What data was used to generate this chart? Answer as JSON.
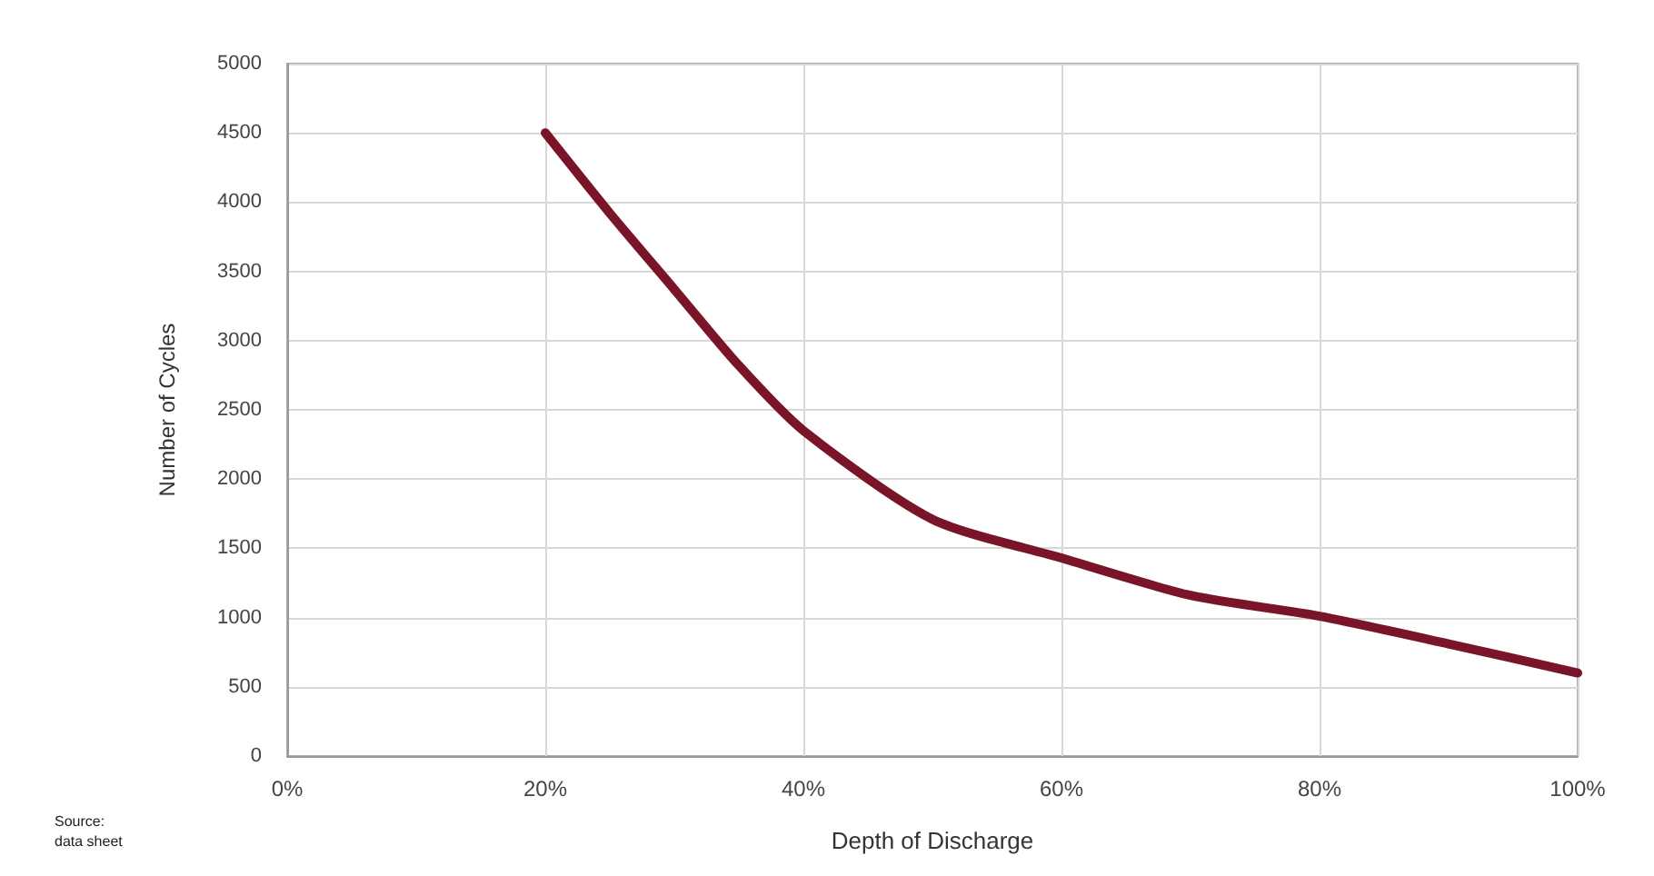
{
  "chart_data": {
    "type": "line",
    "xlabel": "Depth of Discharge",
    "ylabel": "Number of Cycles",
    "x": [
      20,
      25,
      30,
      35,
      40,
      50,
      60,
      70,
      80,
      90,
      100
    ],
    "series": [
      {
        "color": "#7a1428",
        "values": [
          4500,
          3920,
          3370,
          2820,
          2350,
          1710,
          1430,
          1160,
          1010,
          810,
          600
        ]
      }
    ],
    "xlim": [
      0,
      100
    ],
    "xticks": [
      {
        "value": 0,
        "label": "0%"
      },
      {
        "value": 20,
        "label": "20%"
      },
      {
        "value": 40,
        "label": "40%"
      },
      {
        "value": 60,
        "label": "60%"
      },
      {
        "value": 80,
        "label": "80%"
      },
      {
        "value": 100,
        "label": "100%"
      }
    ],
    "ylim": [
      0,
      5000
    ],
    "yticks": [
      0,
      500,
      1000,
      1500,
      2000,
      2500,
      3000,
      3500,
      4000,
      4500,
      5000
    ],
    "grid": true,
    "marker": "none",
    "line_style": "solid",
    "annotations": [
      "Source:",
      "data sheet"
    ]
  }
}
